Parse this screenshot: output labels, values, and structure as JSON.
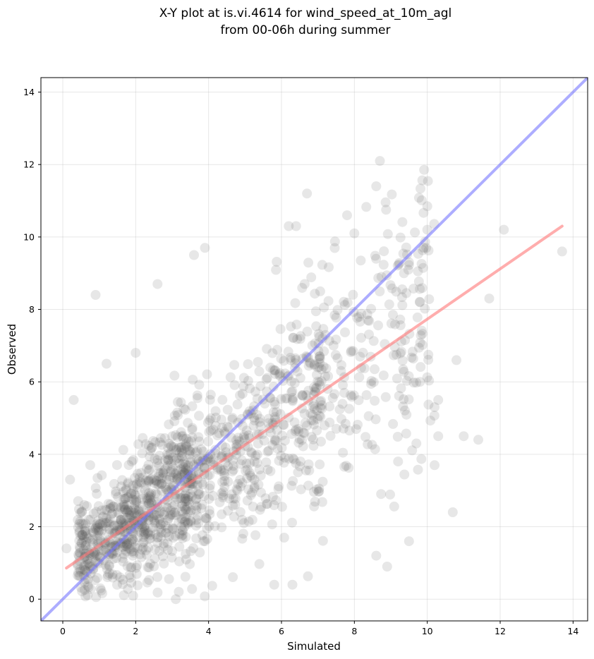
{
  "chart_data": {
    "type": "scatter",
    "title": "X-Y plot at is.vi.4614 for wind_speed_at_10m_agl",
    "subtitle": "from 00-06h during summer",
    "xlabel": "Simulated",
    "ylabel": "Observed",
    "xlim": [
      -0.6,
      14.4
    ],
    "ylim": [
      -0.6,
      14.4
    ],
    "xticks": [
      0,
      2,
      4,
      6,
      8,
      10,
      12,
      14
    ],
    "yticks": [
      0,
      2,
      4,
      6,
      8,
      10,
      12,
      14
    ],
    "grid": true,
    "point_color": "#555555",
    "point_opacity": 0.14,
    "point_count": 1400,
    "point_seed": 4614,
    "reference_line": {
      "color": "#7777ff",
      "x": [
        -0.6,
        14.4
      ],
      "y": [
        -0.6,
        14.4
      ]
    },
    "fit_line": {
      "color": "#ff7777",
      "x": [
        0.1,
        13.7
      ],
      "y": [
        0.86,
        10.3
      ]
    },
    "highlight_points": [
      {
        "x": 0.9,
        "y": 8.4
      },
      {
        "x": 2.6,
        "y": 8.7
      },
      {
        "x": 3.6,
        "y": 9.5
      },
      {
        "x": 3.9,
        "y": 9.7
      },
      {
        "x": 6.7,
        "y": 11.2
      },
      {
        "x": 7.8,
        "y": 10.6
      },
      {
        "x": 8.6,
        "y": 11.4
      },
      {
        "x": 8.7,
        "y": 12.1
      },
      {
        "x": 6.2,
        "y": 10.3
      },
      {
        "x": 6.4,
        "y": 10.3
      },
      {
        "x": 8.0,
        "y": 10.1
      },
      {
        "x": 10.0,
        "y": 10.2
      },
      {
        "x": 12.1,
        "y": 10.2
      },
      {
        "x": 13.7,
        "y": 9.6
      },
      {
        "x": 11.7,
        "y": 8.3
      },
      {
        "x": 10.8,
        "y": 6.6
      },
      {
        "x": 11.0,
        "y": 4.5
      },
      {
        "x": 11.4,
        "y": 4.4
      },
      {
        "x": 10.7,
        "y": 2.4
      },
      {
        "x": 9.5,
        "y": 1.6
      },
      {
        "x": 8.9,
        "y": 0.9
      },
      {
        "x": 8.6,
        "y": 1.2
      },
      {
        "x": 6.3,
        "y": 0.4
      },
      {
        "x": 5.8,
        "y": 0.4
      },
      {
        "x": 3.1,
        "y": 0.0
      },
      {
        "x": 0.1,
        "y": 1.4
      },
      {
        "x": 0.2,
        "y": 3.3
      },
      {
        "x": 0.3,
        "y": 5.5
      },
      {
        "x": 1.2,
        "y": 6.5
      },
      {
        "x": 2.0,
        "y": 6.8
      },
      {
        "x": 9.9,
        "y": 9.7
      },
      {
        "x": 9.8,
        "y": 6.0
      },
      {
        "x": 10.2,
        "y": 5.3
      },
      {
        "x": 10.3,
        "y": 5.5
      },
      {
        "x": 10.2,
        "y": 3.7
      },
      {
        "x": 9.2,
        "y": 3.8
      },
      {
        "x": 9.5,
        "y": 9.3
      },
      {
        "x": 10.3,
        "y": 4.5
      },
      {
        "x": 9.7,
        "y": 4.3
      },
      {
        "x": 9.8,
        "y": 8.2
      }
    ]
  }
}
